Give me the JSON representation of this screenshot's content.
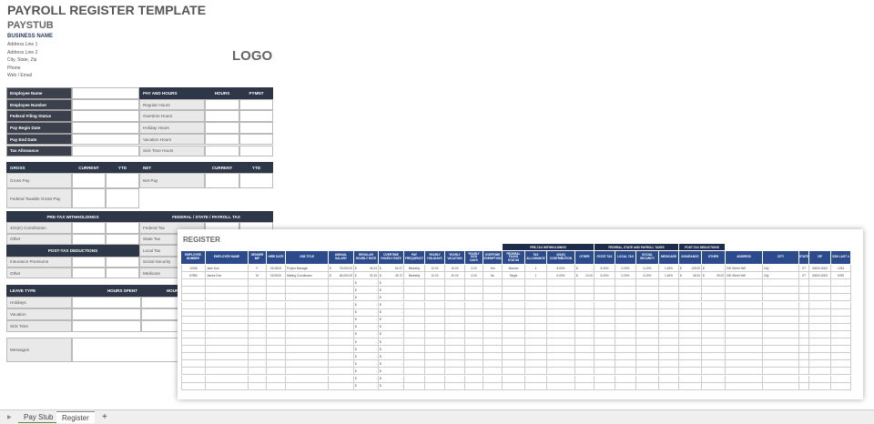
{
  "title": "PAYROLL REGISTER TEMPLATE",
  "subtitle": "PAYSTUB",
  "business": {
    "name": "BUSINESS NAME",
    "lines": [
      "Address Line 1",
      "Address Line 2",
      "City, State, Zip",
      "Phone",
      "Web / Email"
    ],
    "logo": "LOGO"
  },
  "employee_info": [
    "Employee Name",
    "Employee Number",
    "Federal Filing Status",
    "Pay Begin Date",
    "Pay End Date",
    "Tax Allowance"
  ],
  "pay_hours": {
    "headers": [
      "PAY AND HOURS",
      "HOURS",
      "PYMNT"
    ],
    "rows": [
      "Regular Hours",
      "Overtime Hours",
      "Holiday Hours",
      "Vacation Hours",
      "Sick Time Hours"
    ]
  },
  "gross": {
    "headers": [
      "GROSS",
      "CURRENT",
      "YTD"
    ],
    "rows": [
      "Gross Pay",
      "Federal Taxable Gross Pay"
    ]
  },
  "net": {
    "headers": [
      "NET",
      "CURRENT",
      "YTD"
    ],
    "rows": [
      "Net Pay"
    ]
  },
  "pretax": {
    "header": "PRE-TAX WITHHOLDINGS",
    "rows": [
      "401(K) Contribution",
      "Other"
    ]
  },
  "posttax": {
    "header": "POST-TAX DEDUCTIONS",
    "rows": [
      "Insurance Premiums",
      "Other"
    ]
  },
  "federal": {
    "header": "FEDERAL / STATE / PAYROLL TAX",
    "rows": [
      "Federal Tax",
      "State Tax",
      "Local Tax",
      "Social Security",
      "Medicare"
    ]
  },
  "leave": {
    "headers": [
      "LEAVE TYPE",
      "HOURS SPENT",
      "HOURS REMAINING"
    ],
    "rows": [
      "Holidays",
      "Vacation",
      "Sick Time"
    ]
  },
  "messages_label": "Messages",
  "register": {
    "title": "REGISTER",
    "groups": [
      "PRE-TAX WITHHOLDINGS",
      "FEDERAL, STATE AND PAYROLL TAXES",
      "POST-TAX DEDUCTIONS"
    ],
    "columns": [
      "EMPLOYEE NUMBER",
      "EMPLOYEE NAME",
      "GENDER M/F",
      "HIRE DATE",
      "JOB TITLE",
      "ANNUAL SALARY",
      "REGULAR HOURLY RATE",
      "OVERTIME HOURLY RATE",
      "PAY FREQUENCY",
      "YEARLY HOLIDAYS",
      "YEARLY VACATION",
      "YEARLY SICK DAYS",
      "OVERTIME EXEMPTION",
      "FEDERAL FILING STATUS",
      "TAX ALLOWANCE",
      "401(K) CONTRIBUTION",
      "OTHER",
      "STATE TAX",
      "LOCAL TAX",
      "SOCIAL SECURITY",
      "MEDICARE",
      "INSURANCE",
      "OTHER",
      "ADDRESS",
      "CITY",
      "STATE",
      "ZIP",
      "SSN LAST 4"
    ],
    "rows": [
      [
        "12345",
        "Jane Doe",
        "F",
        "01/18/13",
        "Project Manager",
        "$ 75,000.00",
        "$ 36.24",
        "$ 54.37",
        "Biweekly",
        "10.00",
        "15.00",
        "3.00",
        "Yes",
        "Married",
        "4",
        "8.00%",
        "$ -",
        "5.00%",
        "0.00%",
        "6.20%",
        "1.45%",
        "$ 125.00",
        "$ -",
        "000 Street NW",
        "City",
        "ST",
        "00000-0000",
        "1234"
      ],
      [
        "67890",
        "James Doe",
        "M",
        "01/05/10",
        "Mailing Coordinator",
        "$ 65,000.00",
        "$ 30.15",
        "$ 45.72",
        "Biweekly",
        "10.00",
        "20.00",
        "3.00",
        "No",
        "Single",
        "1",
        "6.00%",
        "$ 10.00",
        "5.00%",
        "0.00%",
        "6.20%",
        "1.45%",
        "$ 45.00",
        "$ 25.00",
        "000 Street NW",
        "City",
        "ST",
        "00000-0000",
        "6789"
      ]
    ],
    "empty_rate_value": "$ -"
  },
  "sheet_tabs": [
    "Pay Stub",
    "Register"
  ],
  "active_tab": "Register",
  "add_sheet": "+",
  "colors": {
    "header_dark": "#2e3747",
    "register_header": "#2c4b8c",
    "register_group": "#1f2b4b"
  }
}
